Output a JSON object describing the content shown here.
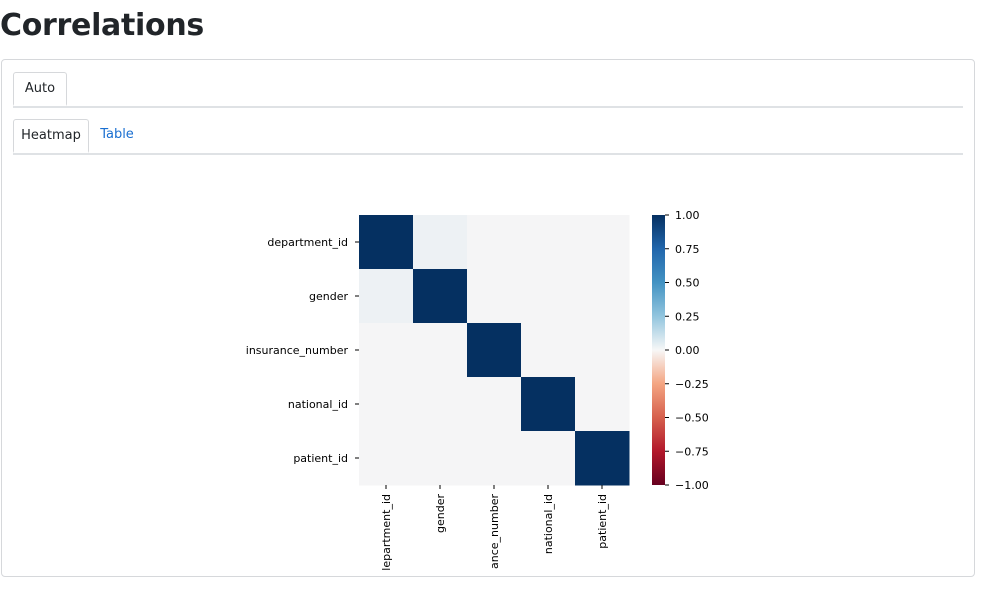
{
  "page": {
    "title": "Correlations"
  },
  "tabs_level1": [
    {
      "label": "Auto",
      "active": true
    }
  ],
  "tabs_level2": [
    {
      "label": "Heatmap",
      "active": true
    },
    {
      "label": "Table",
      "active": false
    }
  ],
  "colors": {
    "link": "#1a6fd1",
    "high": "#053061",
    "neutral": "#f5f5f6"
  },
  "chart_data": {
    "type": "heatmap",
    "title": "",
    "xlabel": "",
    "ylabel": "",
    "x_tick_labels": [
      "lepartment_id",
      "gender",
      "ance_number",
      "national_id",
      "patient_id"
    ],
    "y_tick_labels": [
      "department_id",
      "gender",
      "insurance_number",
      "national_id",
      "patient_id"
    ],
    "values": [
      [
        1.0,
        0.02,
        0.0,
        0.0,
        0.0
      ],
      [
        0.02,
        1.0,
        0.0,
        0.0,
        0.0
      ],
      [
        0.0,
        0.0,
        1.0,
        0.0,
        0.0
      ],
      [
        0.0,
        0.0,
        0.0,
        1.0,
        0.0
      ],
      [
        0.0,
        0.0,
        0.0,
        0.0,
        1.0
      ]
    ],
    "colorbar": {
      "colormap": "RdBu",
      "range": [
        -1,
        1
      ],
      "ticks": [
        "1.00",
        "0.75",
        "0.50",
        "0.25",
        "0.00",
        "−0.25",
        "−0.50",
        "−0.75",
        "−1.00"
      ]
    }
  }
}
